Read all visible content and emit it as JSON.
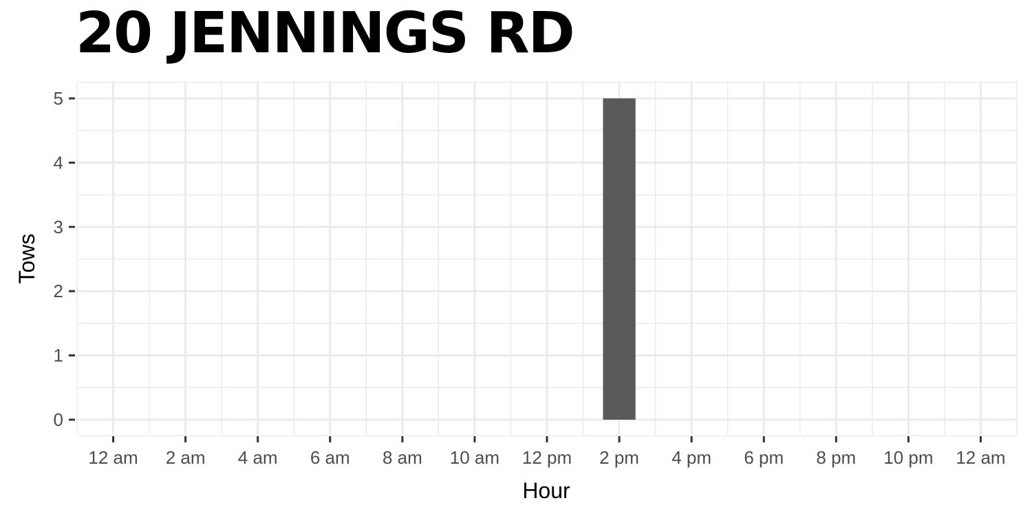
{
  "chart_data": {
    "type": "bar",
    "title": "20 JENNINGS RD",
    "xlabel": "Hour",
    "ylabel": "Tows",
    "x_ticks": [
      "12 am",
      "2 am",
      "4 am",
      "6 am",
      "8 am",
      "10 am",
      "12 pm",
      "2 pm",
      "4 pm",
      "6 pm",
      "8 pm",
      "10 pm",
      "12 am"
    ],
    "x_tick_hours": [
      0,
      2,
      4,
      6,
      8,
      10,
      12,
      14,
      16,
      18,
      20,
      22,
      24
    ],
    "y_ticks": [
      0,
      1,
      2,
      3,
      4,
      5
    ],
    "ylim": [
      0,
      5
    ],
    "xlim": [
      -1,
      25
    ],
    "bars": [
      {
        "hour": 14,
        "label": "2 pm",
        "value": 5
      }
    ],
    "bar_color": "#595959",
    "grid": true,
    "grid_color": "#ebebeb"
  }
}
